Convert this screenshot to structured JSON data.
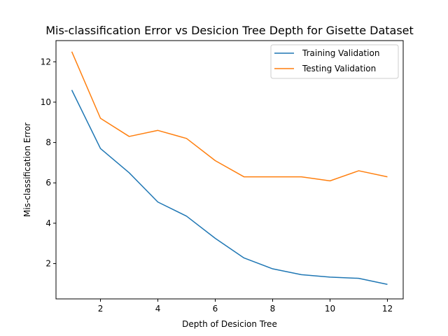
{
  "chart_data": {
    "type": "line",
    "title": "Mis-classification Error vs Desicion Tree Depth for Gisette Dataset",
    "xlabel": "Depth of Desicion Tree",
    "ylabel": "Mis-classification Error",
    "x": [
      1,
      2,
      3,
      4,
      5,
      6,
      7,
      8,
      9,
      10,
      11,
      12
    ],
    "xlim": [
      0.45,
      12.55
    ],
    "ylim": [
      0.25,
      13.05
    ],
    "xticks": [
      2,
      4,
      6,
      8,
      10,
      12
    ],
    "yticks": [
      2,
      4,
      6,
      8,
      10,
      12
    ],
    "legend_position": "top-right",
    "grid": false,
    "series": [
      {
        "name": "Training Validation",
        "color": "#1f77b4",
        "values": [
          10.6,
          7.7,
          6.5,
          5.05,
          4.35,
          3.25,
          2.28,
          1.74,
          1.45,
          1.33,
          1.27,
          0.97
        ]
      },
      {
        "name": "Testing Validation",
        "color": "#ff7f0e",
        "values": [
          12.5,
          9.2,
          8.3,
          8.6,
          8.2,
          7.1,
          6.3,
          6.3,
          6.3,
          6.1,
          6.6,
          6.3
        ]
      }
    ]
  }
}
